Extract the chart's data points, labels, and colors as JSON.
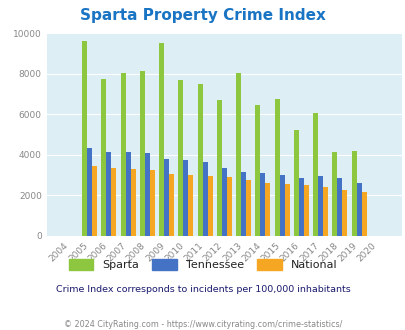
{
  "title": "Sparta Property Crime Index",
  "years": [
    2004,
    2005,
    2006,
    2007,
    2008,
    2009,
    2010,
    2011,
    2012,
    2013,
    2014,
    2015,
    2016,
    2017,
    2018,
    2019,
    2020
  ],
  "sparta": [
    0,
    9600,
    7750,
    8050,
    8150,
    9500,
    7700,
    7500,
    6700,
    8050,
    6450,
    6750,
    5200,
    6050,
    4150,
    4200,
    0
  ],
  "tennessee": [
    0,
    4350,
    4150,
    4150,
    4100,
    3800,
    3750,
    3650,
    3350,
    3150,
    3100,
    3000,
    2850,
    2950,
    2850,
    2600,
    0
  ],
  "national": [
    0,
    3450,
    3350,
    3300,
    3250,
    3050,
    3000,
    2950,
    2900,
    2750,
    2600,
    2550,
    2500,
    2400,
    2250,
    2150,
    0
  ],
  "sparta_color": "#8dc63f",
  "tennessee_color": "#4472c4",
  "national_color": "#f5a623",
  "bg_color": "#ffffff",
  "plot_bg": "#ddeef5",
  "ylim": [
    0,
    10000
  ],
  "yticks": [
    0,
    2000,
    4000,
    6000,
    8000,
    10000
  ],
  "subtitle": "Crime Index corresponds to incidents per 100,000 inhabitants",
  "footer": "© 2024 CityRating.com - https://www.cityrating.com/crime-statistics/",
  "title_color": "#1a74c4",
  "subtitle_color": "#1a1a6e",
  "footer_color": "#888888",
  "tick_color": "#888888",
  "legend_text_color": "#222222",
  "legend_labels": [
    "Sparta",
    "Tennessee",
    "National"
  ]
}
